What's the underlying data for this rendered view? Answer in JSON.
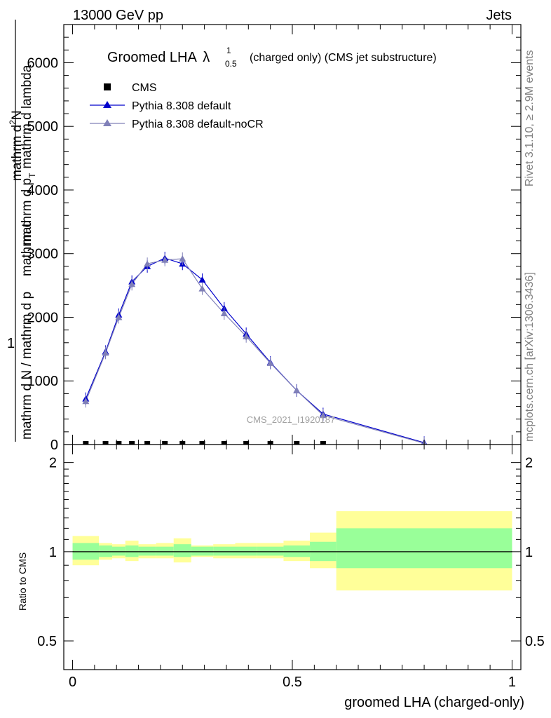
{
  "header": {
    "left": "13000 GeV pp",
    "right": "Jets"
  },
  "side_labels": {
    "rivet": "Rivet 3.1.10, ≥ 2.9M events",
    "mcplots": "mcplots.cern.ch [arXiv:1306.3436]"
  },
  "watermark": "CMS_2021_I1920187",
  "chart_data": [
    {
      "type": "line",
      "title": {
        "prefix": "Groomed LHA",
        "lambda": "λ",
        "sup": "1",
        "sub": "0.5",
        "suffix": "(charged only) (CMS jet substructure)"
      },
      "ylabel": {
        "numerator_left": "1",
        "denominator": "mathrm d N / mathrm d p",
        "overlaid": "mathrm d",
        "rot_num": "mathrm d",
        "rot_num_sup": "2",
        "rot_num_N": "N",
        "rot_den": "mathrm d p",
        "rot_den_sub": "T",
        "rot_den_tail": "mathrm d lambda"
      },
      "xlim": [
        -0.02,
        1.02
      ],
      "ylim": [
        0,
        6600
      ],
      "yticks": [
        {
          "v": 0,
          "label": "0"
        },
        {
          "v": 1000,
          "label": "1000"
        },
        {
          "v": 2000,
          "label": "2000"
        },
        {
          "v": 3000,
          "label": "3000"
        },
        {
          "v": 4000,
          "label": "4000"
        },
        {
          "v": 5000,
          "label": "5000"
        },
        {
          "v": 6000,
          "label": "6000"
        }
      ],
      "legend": {
        "placement": "top-left",
        "entries": [
          "CMS",
          "Pythia 8.308 default",
          "Pythia 8.308 default-noCR"
        ]
      },
      "series": [
        {
          "name": "CMS",
          "marker": "square",
          "color": "#000000",
          "x": [
            0.03,
            0.075,
            0.105,
            0.135,
            0.17,
            0.21,
            0.25,
            0.295,
            0.345,
            0.395,
            0.45,
            0.51,
            0.57
          ],
          "y": [
            0,
            0,
            0,
            0,
            0,
            0,
            0,
            0,
            0,
            0,
            0,
            0,
            0
          ]
        },
        {
          "name": "Pythia 8.308 default",
          "marker": "triangle",
          "color": "#0000cc",
          "x": [
            0.03,
            0.075,
            0.105,
            0.135,
            0.17,
            0.21,
            0.25,
            0.295,
            0.345,
            0.395,
            0.45,
            0.51,
            0.57,
            0.8
          ],
          "y": [
            720,
            1460,
            2040,
            2560,
            2800,
            2930,
            2840,
            2590,
            2140,
            1740,
            1290,
            850,
            480,
            30
          ]
        },
        {
          "name": "Pythia 8.308 default-noCR",
          "marker": "triangle",
          "color": "#8080b8",
          "x": [
            0.03,
            0.075,
            0.105,
            0.135,
            0.17,
            0.21,
            0.25,
            0.295,
            0.345,
            0.395,
            0.45,
            0.51,
            0.57,
            0.8
          ],
          "y": [
            680,
            1440,
            2000,
            2520,
            2840,
            2900,
            2920,
            2450,
            2060,
            1700,
            1280,
            850,
            460,
            20
          ]
        }
      ]
    },
    {
      "type": "area",
      "ylabel": "Ratio to CMS",
      "xlabel": "groomed LHA (charged-only)",
      "xlim": [
        -0.02,
        1.02
      ],
      "ylim": [
        0.4,
        2.3
      ],
      "yscale": "log",
      "yticks": [
        {
          "v": 0.5,
          "label": "0.5"
        },
        {
          "v": 1,
          "label": "1"
        },
        {
          "v": 2,
          "label": "2"
        }
      ],
      "xticks": [
        {
          "v": 0,
          "label": "0"
        },
        {
          "v": 0.5,
          "label": "0.5"
        },
        {
          "v": 1,
          "label": "1"
        }
      ],
      "colors": {
        "outer_band": "#ffff99",
        "inner_band": "#99ff99",
        "reference_line": "#000000"
      },
      "bands": [
        {
          "x0": 0.0,
          "x1": 0.06,
          "inner": [
            0.94,
            1.07
          ],
          "outer": [
            0.9,
            1.13
          ]
        },
        {
          "x0": 0.06,
          "x1": 0.09,
          "inner": [
            0.96,
            1.05
          ],
          "outer": [
            0.94,
            1.07
          ]
        },
        {
          "x0": 0.09,
          "x1": 0.12,
          "inner": [
            0.97,
            1.04
          ],
          "outer": [
            0.95,
            1.06
          ]
        },
        {
          "x0": 0.12,
          "x1": 0.15,
          "inner": [
            0.96,
            1.05
          ],
          "outer": [
            0.93,
            1.09
          ]
        },
        {
          "x0": 0.15,
          "x1": 0.19,
          "inner": [
            0.97,
            1.04
          ],
          "outer": [
            0.95,
            1.06
          ]
        },
        {
          "x0": 0.19,
          "x1": 0.23,
          "inner": [
            0.97,
            1.04
          ],
          "outer": [
            0.95,
            1.07
          ]
        },
        {
          "x0": 0.23,
          "x1": 0.27,
          "inner": [
            0.96,
            1.06
          ],
          "outer": [
            0.92,
            1.11
          ]
        },
        {
          "x0": 0.27,
          "x1": 0.32,
          "inner": [
            0.97,
            1.04
          ],
          "outer": [
            0.96,
            1.05
          ]
        },
        {
          "x0": 0.32,
          "x1": 0.37,
          "inner": [
            0.97,
            1.04
          ],
          "outer": [
            0.95,
            1.06
          ]
        },
        {
          "x0": 0.37,
          "x1": 0.42,
          "inner": [
            0.97,
            1.04
          ],
          "outer": [
            0.95,
            1.07
          ]
        },
        {
          "x0": 0.42,
          "x1": 0.48,
          "inner": [
            0.97,
            1.04
          ],
          "outer": [
            0.95,
            1.07
          ]
        },
        {
          "x0": 0.48,
          "x1": 0.54,
          "inner": [
            0.96,
            1.05
          ],
          "outer": [
            0.93,
            1.09
          ]
        },
        {
          "x0": 0.54,
          "x1": 0.6,
          "inner": [
            0.93,
            1.08
          ],
          "outer": [
            0.88,
            1.16
          ]
        },
        {
          "x0": 0.6,
          "x1": 1.0,
          "inner": [
            0.88,
            1.2
          ],
          "outer": [
            0.74,
            1.37
          ]
        }
      ]
    }
  ]
}
